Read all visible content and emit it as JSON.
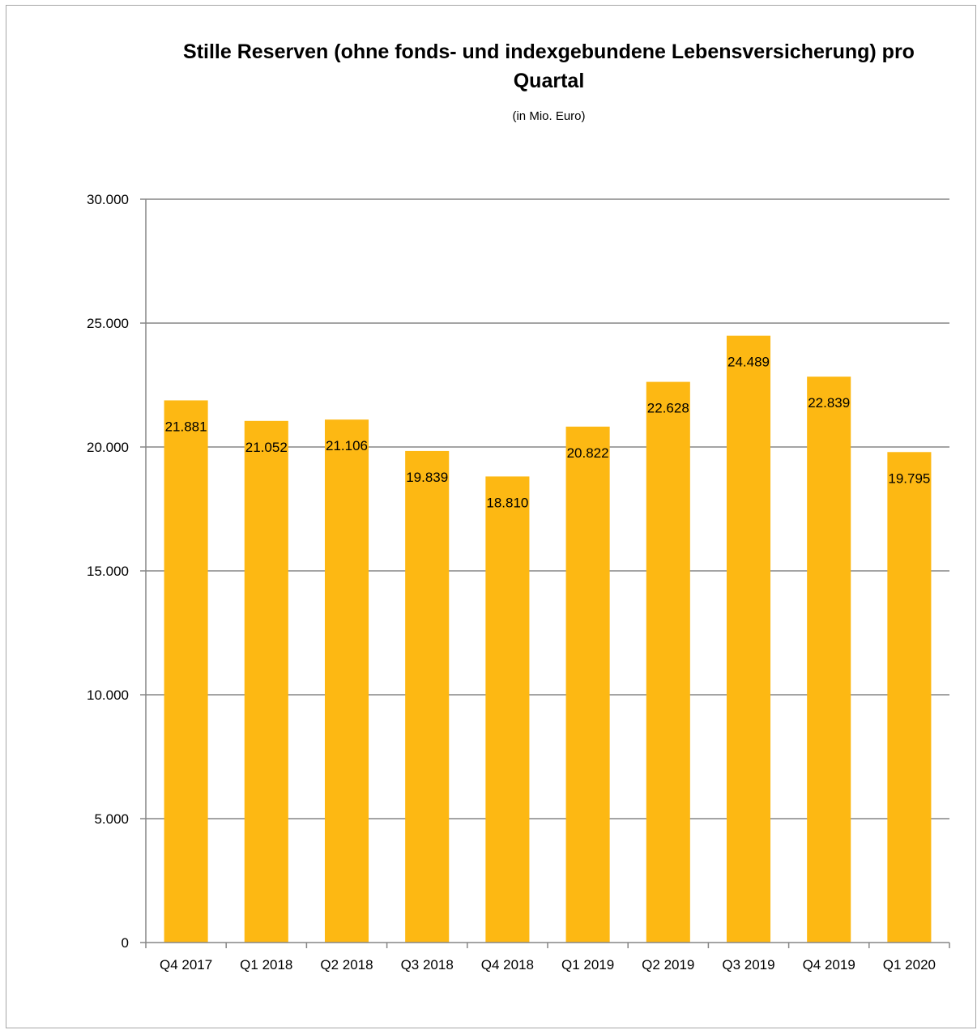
{
  "chart_data": {
    "type": "bar",
    "title": "Stille Reserven (ohne fonds- und indexgebundene Lebensversicherung) pro Quartal",
    "subtitle": "(in Mio. Euro)",
    "xlabel": "",
    "ylabel": "",
    "categories": [
      "Q4 2017",
      "Q1 2018",
      "Q2 2018",
      "Q3 2018",
      "Q4 2018",
      "Q1 2019",
      "Q2 2019",
      "Q3 2019",
      "Q4 2019",
      "Q1 2020"
    ],
    "values": [
      21881,
      21052,
      21106,
      19839,
      18810,
      20822,
      22628,
      24489,
      22839,
      19795
    ],
    "value_labels": [
      "21.881",
      "21.052",
      "21.106",
      "19.839",
      "18.810",
      "20.822",
      "22.628",
      "24.489",
      "22.839",
      "19.795"
    ],
    "ylim": [
      0,
      30000
    ],
    "y_ticks": [
      0,
      5000,
      10000,
      15000,
      20000,
      25000,
      30000
    ],
    "y_tick_labels": [
      "0",
      "5.000",
      "10.000",
      "15.000",
      "20.000",
      "25.000",
      "30.000"
    ],
    "bar_color": "#fdb813",
    "grid": true,
    "grid_color": "#868686",
    "legend": "none"
  }
}
